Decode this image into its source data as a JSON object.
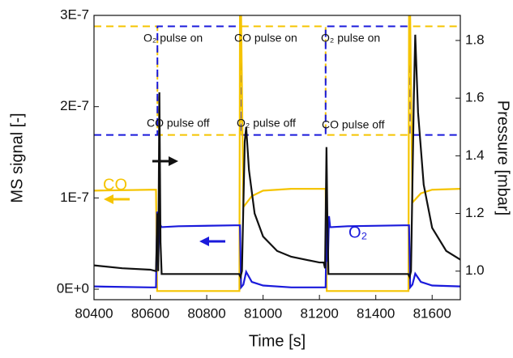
{
  "chart_data": {
    "type": "line",
    "xlabel": "Time [s]",
    "ylabel": "MS signal [-]",
    "y2label": "Pressure [mbar]",
    "xlim": [
      80400,
      81700
    ],
    "xticks": [
      80400,
      80600,
      80800,
      81000,
      81200,
      81400,
      81600
    ],
    "ylim": [
      -1.15e-08,
      3e-07
    ],
    "yticks": [
      {
        "value": 0,
        "label": "0E+0"
      },
      {
        "value": 1e-07,
        "label": "1E-7"
      },
      {
        "value": 2e-07,
        "label": "2E-7"
      },
      {
        "value": 3e-07,
        "label": "3E-7"
      }
    ],
    "y2lim": [
      0.901,
      1.887
    ],
    "y2ticks": [
      {
        "value": 1,
        "label": "1.0"
      },
      1.2,
      1.4,
      1.6,
      1.8
    ],
    "annotations": [
      "O₂ pulse on",
      "CO pulse on",
      "O₂ pulse on",
      "CO pulse off",
      "O₂ pulse off",
      "CO pulse off"
    ],
    "series": [
      {
        "color": "#f5c400",
        "dash": true,
        "x": [
          80400,
          80625,
          80625,
          80920,
          80920,
          81222,
          81222,
          81520,
          81520,
          81700
        ],
        "values": [
          2.88e-07,
          2.88e-07,
          1.69e-07,
          1.69e-07,
          2.88e-07,
          2.88e-07,
          1.69e-07,
          1.69e-07,
          2.88e-07,
          2.88e-07
        ]
      },
      {
        "color": "#1a1adb",
        "dash": true,
        "x": [
          80400,
          80625,
          80625,
          80920,
          80920,
          81222,
          81222,
          81520,
          81520,
          81700
        ],
        "values": [
          1.69e-07,
          1.69e-07,
          2.88e-07,
          2.88e-07,
          1.69e-07,
          1.69e-07,
          2.88e-07,
          2.88e-07,
          1.69e-07,
          1.69e-07
        ]
      },
      {
        "name": "CO",
        "color": "#f5c400",
        "x": [
          80400,
          80600,
          80620,
          80624,
          80700,
          80900,
          80916,
          80918,
          80922,
          80930,
          80960,
          81000,
          81100,
          81216,
          81222,
          81226,
          81300,
          81500,
          81516,
          81518,
          81522,
          81530,
          81560,
          81600,
          81700
        ],
        "values": [
          1.08e-07,
          1.09e-07,
          1.09e-07,
          -2e-09,
          -2e-09,
          -2e-09,
          -2e-09,
          3e-07,
          3e-07,
          9e-08,
          1.02e-07,
          1.08e-07,
          1.1e-07,
          1.1e-07,
          1.1e-07,
          -2e-09,
          -2e-09,
          -2e-09,
          -2e-09,
          3e-07,
          3e-07,
          9.5e-08,
          1.05e-07,
          1.09e-07,
          1.1e-07
        ]
      },
      {
        "name": "O₂",
        "color": "#1a1adb",
        "x": [
          80400,
          80600,
          80620,
          80624,
          80628,
          80632,
          80636,
          80640,
          80700,
          80900,
          80918,
          80922,
          80930,
          80940,
          80960,
          81000,
          81100,
          81215,
          81222,
          81226,
          81230,
          81234,
          81238,
          81242,
          81300,
          81500,
          81518,
          81522,
          81530,
          81540,
          81560,
          81600,
          81700
        ],
        "values": [
          3e-09,
          2e-09,
          2e-09,
          8.5e-08,
          3e-08,
          8e-08,
          7e-08,
          6.8e-08,
          6.9e-08,
          7e-08,
          7e-08,
          2e-09,
          5e-09,
          1.9e-08,
          8e-09,
          4e-09,
          2e-09,
          2e-09,
          2e-09,
          8.5e-08,
          3e-08,
          8e-08,
          6.8e-08,
          6.8e-08,
          6.9e-08,
          7e-08,
          7e-08,
          2e-09,
          5e-09,
          1.7e-08,
          8e-09,
          4e-09,
          3e-09
        ]
      },
      {
        "color": "#111111",
        "axis": "y2",
        "x": [
          80400,
          80500,
          80600,
          80620,
          80625,
          80628,
          80632,
          80636,
          80640,
          80650,
          80700,
          80800,
          80915,
          80920,
          80925,
          80935,
          80940,
          80950,
          80970,
          81000,
          81050,
          81100,
          81200,
          81215,
          81220,
          81225,
          81228,
          81232,
          81240,
          81300,
          81400,
          81510,
          81515,
          81520,
          81525,
          81535,
          81540,
          81550,
          81570,
          81600,
          81650,
          81700
        ],
        "values": [
          1.02,
          1.01,
          1.005,
          1.0,
          1.2,
          1.0,
          1.62,
          1.1,
          0.99,
          0.99,
          0.99,
          0.99,
          0.99,
          0.98,
          1.0,
          1.45,
          1.5,
          1.35,
          1.2,
          1.12,
          1.07,
          1.05,
          1.03,
          1.03,
          1.01,
          1.43,
          1.2,
          0.99,
          0.99,
          0.99,
          0.99,
          0.99,
          0.99,
          0.98,
          1.0,
          1.6,
          1.82,
          1.55,
          1.3,
          1.15,
          1.07,
          1.04
        ]
      }
    ]
  }
}
